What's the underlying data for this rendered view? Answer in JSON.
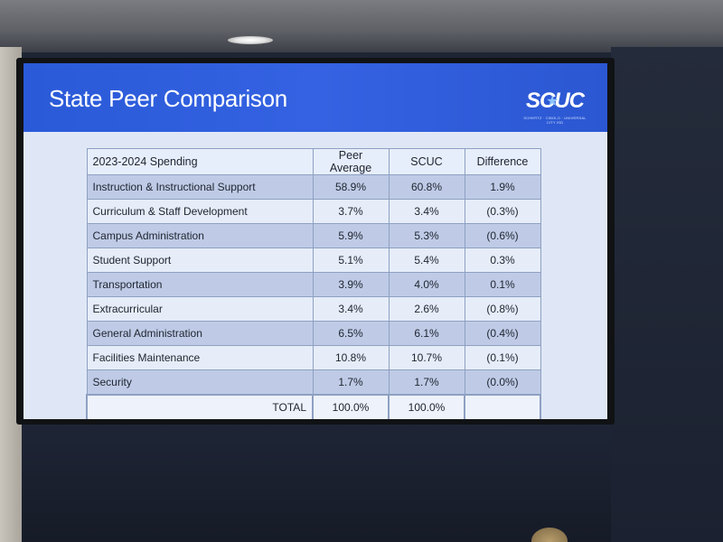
{
  "slide": {
    "title": "State Peer Comparison",
    "logo_text": "SCUC",
    "logo_tagline": "SCHERTZ · CIBOLO · UNIVERSAL CITY ISD"
  },
  "table": {
    "headers": [
      "2023-2024 Spending",
      "Peer Average",
      "SCUC",
      "Difference"
    ],
    "rows": [
      {
        "category": "Instruction & Instructional Support",
        "peer": "58.9%",
        "scuc": "60.8%",
        "diff": "1.9%"
      },
      {
        "category": "Curriculum & Staff Development",
        "peer": "3.7%",
        "scuc": "3.4%",
        "diff": "(0.3%)"
      },
      {
        "category": "Campus Administration",
        "peer": "5.9%",
        "scuc": "5.3%",
        "diff": "(0.6%)"
      },
      {
        "category": "Student Support",
        "peer": "5.1%",
        "scuc": "5.4%",
        "diff": "0.3%"
      },
      {
        "category": "Transportation",
        "peer": "3.9%",
        "scuc": "4.0%",
        "diff": "0.1%"
      },
      {
        "category": "Extracurricular",
        "peer": "3.4%",
        "scuc": "2.6%",
        "diff": "(0.8%)"
      },
      {
        "category": "General Administration",
        "peer": "6.5%",
        "scuc": "6.1%",
        "diff": "(0.4%)"
      },
      {
        "category": "Facilities Maintenance",
        "peer": "10.8%",
        "scuc": "10.7%",
        "diff": "(0.1%)"
      },
      {
        "category": "Security",
        "peer": "1.7%",
        "scuc": "1.7%",
        "diff": "(0.0%)"
      }
    ],
    "total": {
      "label": "TOTAL",
      "peer": "100.0%",
      "scuc": "100.0%",
      "diff": ""
    }
  }
}
